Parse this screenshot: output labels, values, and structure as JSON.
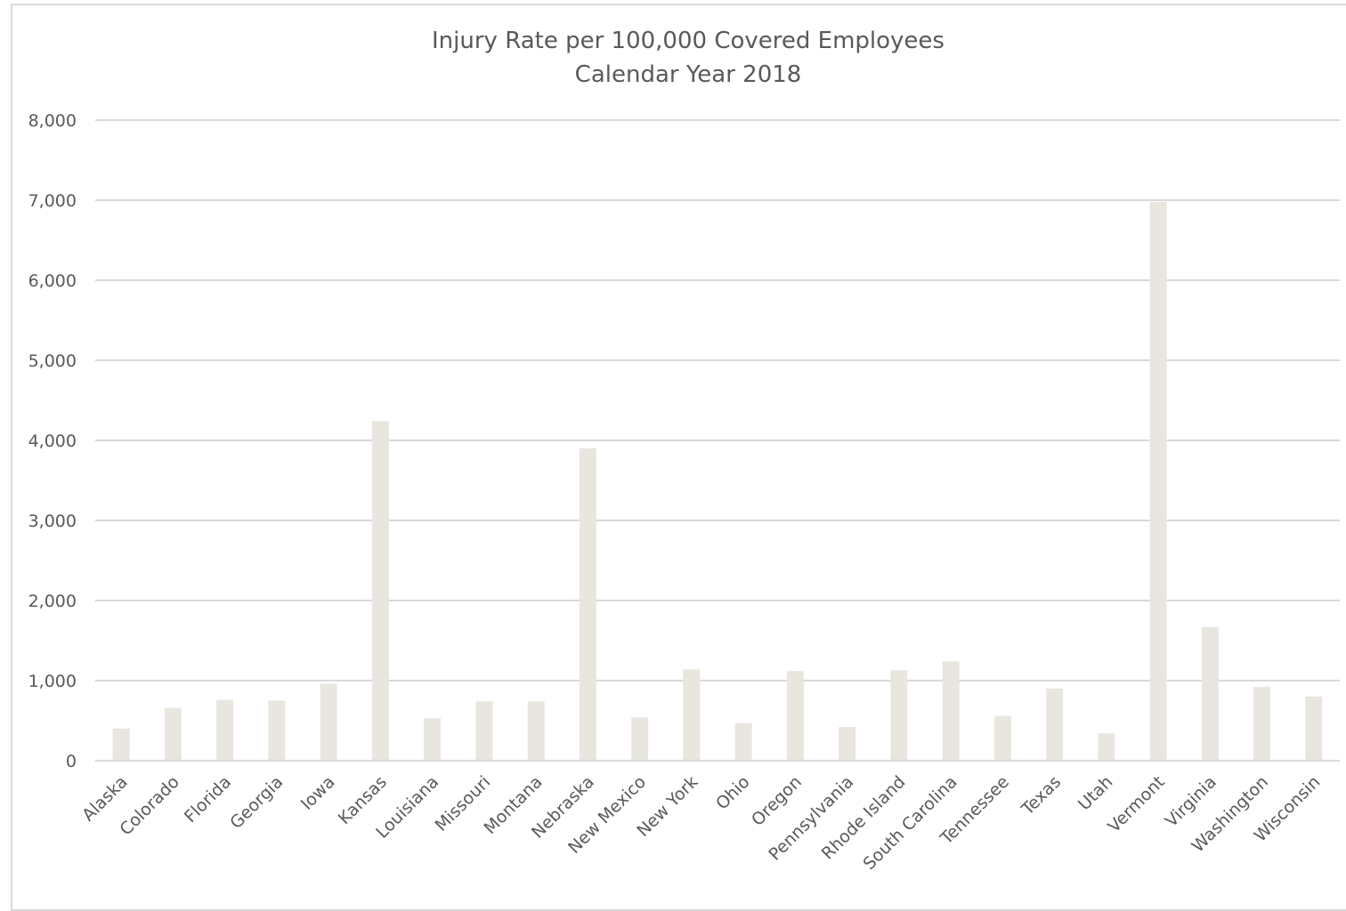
{
  "chart_data": {
    "type": "bar",
    "title": "Injury Rate per 100,000 Covered Employees",
    "subtitle": "Calendar Year 2018",
    "xlabel": "",
    "ylabel": "",
    "ylim": [
      0,
      8000
    ],
    "yticks": [
      0,
      1000,
      2000,
      3000,
      4000,
      5000,
      6000,
      7000,
      8000
    ],
    "ytick_labels": [
      "0",
      "1,000",
      "2,000",
      "3,000",
      "4,000",
      "5,000",
      "6,000",
      "7,000",
      "8,000"
    ],
    "grid": true,
    "bar_color": "#e8e6df",
    "grid_color": "#d9d9d9",
    "text_color": "#595959",
    "categories": [
      "Alaska",
      "Colorado",
      "Florida",
      "Georgia",
      "Iowa",
      "Kansas",
      "Louisiana",
      "Missouri",
      "Montana",
      "Nebraska",
      "New Mexico",
      "New York",
      "Ohio",
      "Oregon",
      "Pennsylvania",
      "Rhode Island",
      "South Carolina",
      "Tennessee",
      "Texas",
      "Utah",
      "Vermont",
      "Virginia",
      "Washington",
      "Wisconsin"
    ],
    "values": [
      400,
      660,
      760,
      750,
      960,
      4240,
      530,
      740,
      740,
      3900,
      540,
      1140,
      470,
      1120,
      420,
      1130,
      1240,
      560,
      900,
      340,
      6980,
      1670,
      920,
      800
    ]
  }
}
